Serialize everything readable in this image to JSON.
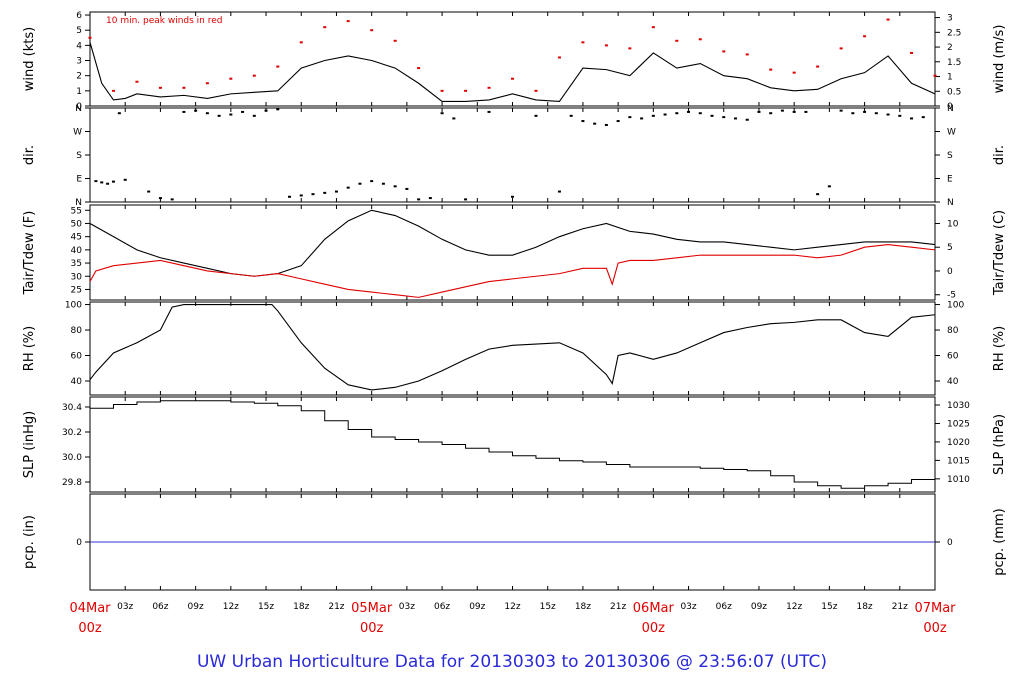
{
  "title": "UW Urban Horticulture Data for 20130303  to  20130306 @ 23:56:07  (UTC)",
  "chart_data": [
    {
      "type": "line",
      "name": "wind",
      "ylabel_left": "wind (kts)",
      "ylabel_right": "wind (m/s)",
      "annotation": "10 min. peak winds in red",
      "ylim": [
        0,
        6.2
      ],
      "ticks_left": [
        "0",
        "1",
        "2",
        "3",
        "4",
        "5",
        "6"
      ],
      "ticks_right": [
        "0",
        "0.5",
        "1",
        "1.5",
        "2",
        "2.5",
        "3"
      ],
      "series": [
        {
          "color": "#000000",
          "x": [
            0,
            1,
            2,
            3,
            4,
            6,
            8,
            10,
            12,
            14,
            16,
            18,
            20,
            22,
            24,
            26,
            28,
            30,
            32,
            34,
            36,
            38,
            40,
            42,
            44,
            46,
            48,
            50,
            52,
            54,
            56,
            58,
            60,
            62,
            64,
            66,
            68,
            70,
            72
          ],
          "values": [
            4.2,
            1.5,
            0.4,
            0.5,
            0.8,
            0.6,
            0.7,
            0.5,
            0.8,
            0.9,
            1.0,
            2.5,
            3.0,
            3.3,
            3.0,
            2.5,
            1.5,
            0.3,
            0.3,
            0.4,
            0.8,
            0.4,
            0.3,
            2.5,
            2.4,
            2.0,
            3.5,
            2.5,
            2.8,
            2.0,
            1.8,
            1.2,
            1.0,
            1.1,
            1.8,
            2.2,
            3.3,
            1.5,
            0.8
          ]
        },
        {
          "color": "#e00000",
          "name": "10 min. peak winds in red",
          "x": [
            0,
            2,
            4,
            6,
            8,
            10,
            12,
            14,
            16,
            18,
            20,
            22,
            24,
            26,
            28,
            30,
            32,
            34,
            36,
            38,
            40,
            42,
            44,
            46,
            48,
            50,
            52,
            54,
            56,
            58,
            60,
            62,
            64,
            66,
            68,
            70,
            72
          ],
          "values": [
            4.5,
            1.0,
            1.6,
            1.2,
            1.2,
            1.5,
            1.8,
            2.0,
            2.6,
            4.2,
            5.2,
            5.6,
            5.0,
            4.3,
            2.5,
            1.0,
            1.0,
            1.2,
            1.8,
            1.0,
            3.2,
            4.2,
            4.0,
            3.8,
            5.2,
            4.3,
            4.4,
            3.6,
            3.4,
            2.4,
            2.2,
            2.6,
            3.8,
            4.6,
            5.7,
            3.5,
            2.0
          ]
        }
      ]
    },
    {
      "type": "scatter",
      "name": "dir",
      "ylabel_left": "dir.",
      "ylabel_right": "dir.",
      "ticks_left": [
        "N",
        "W",
        "S",
        "E",
        "N"
      ],
      "ticks_right": [
        "N",
        "W",
        "S",
        "E",
        "N"
      ],
      "ylim": [
        0,
        360
      ],
      "series": [
        {
          "color": "#000000",
          "x": [
            0.5,
            1,
            1.5,
            2,
            2.5,
            3,
            5,
            6,
            7,
            8,
            9,
            10,
            11,
            12,
            13,
            14,
            15,
            16,
            17,
            18,
            19,
            20,
            21,
            22,
            23,
            24,
            25,
            26,
            27,
            28,
            29,
            30,
            31,
            32,
            34,
            36,
            38,
            40,
            41,
            42,
            43,
            44,
            45,
            46,
            47,
            48,
            49,
            50,
            51,
            52,
            53,
            54,
            55,
            56,
            57,
            58,
            59,
            60,
            61,
            62,
            63,
            64,
            65,
            66,
            67,
            68,
            69,
            70,
            71
          ],
          "values": [
            80,
            75,
            70,
            78,
            340,
            85,
            40,
            15,
            10,
            345,
            350,
            340,
            330,
            335,
            345,
            330,
            350,
            355,
            20,
            25,
            30,
            35,
            40,
            55,
            70,
            80,
            70,
            60,
            50,
            10,
            15,
            340,
            320,
            10,
            345,
            20,
            330,
            40,
            330,
            310,
            300,
            295,
            310,
            325,
            320,
            330,
            335,
            340,
            345,
            340,
            330,
            325,
            320,
            315,
            345,
            340,
            350,
            345,
            345,
            30,
            60,
            350,
            340,
            345,
            340,
            335,
            330,
            320,
            325
          ]
        }
      ]
    },
    {
      "type": "line",
      "name": "temperature",
      "ylabel_left": "Tair/Tdew (F)",
      "ylabel_right": "Tair/Tdew (C)",
      "ylim": [
        21,
        57
      ],
      "ticks_left": [
        "25",
        "30",
        "35",
        "40",
        "45",
        "50",
        "55"
      ],
      "ticks_right": [
        "-5",
        "0",
        "5",
        "10"
      ],
      "series": [
        {
          "color": "#000000",
          "name": "Tair",
          "x": [
            0,
            2,
            4,
            6,
            8,
            10,
            12,
            14,
            16,
            18,
            20,
            22,
            24,
            26,
            28,
            30,
            32,
            34,
            36,
            38,
            40,
            42,
            44,
            46,
            48,
            50,
            52,
            54,
            56,
            58,
            60,
            62,
            64,
            66,
            68,
            70,
            72
          ],
          "values": [
            50,
            45,
            40,
            37,
            35,
            33,
            31,
            30,
            31,
            34,
            44,
            51,
            55,
            53,
            49,
            44,
            40,
            38,
            38,
            41,
            45,
            48,
            50,
            47,
            46,
            44,
            43,
            43,
            42,
            41,
            40,
            41,
            42,
            43,
            43,
            43,
            42
          ]
        },
        {
          "color": "#e00000",
          "name": "Tdew",
          "x": [
            0,
            0.5,
            2,
            4,
            6,
            8,
            10,
            12,
            14,
            16,
            18,
            20,
            22,
            24,
            26,
            28,
            30,
            32,
            34,
            36,
            38,
            40,
            42,
            44,
            44.5,
            45,
            46,
            48,
            50,
            52,
            54,
            56,
            58,
            60,
            62,
            64,
            66,
            68,
            70,
            72
          ],
          "values": [
            28,
            32,
            34,
            35,
            36,
            34,
            32,
            31,
            30,
            31,
            29,
            27,
            25,
            24,
            23,
            22,
            24,
            26,
            28,
            29,
            30,
            31,
            33,
            33,
            27,
            35,
            36,
            36,
            37,
            38,
            38,
            38,
            38,
            38,
            37,
            38,
            41,
            42,
            41,
            40
          ]
        }
      ]
    },
    {
      "type": "line",
      "name": "rh",
      "ylabel_left": "RH (%)",
      "ylabel_right": "RH (%)",
      "ylim": [
        29,
        102
      ],
      "ticks_left": [
        "40",
        "60",
        "80",
        "100"
      ],
      "ticks_right": [
        "40",
        "60",
        "80",
        "100"
      ],
      "series": [
        {
          "color": "#000000",
          "x": [
            0,
            0.5,
            2,
            4,
            6,
            7,
            8,
            10,
            12,
            14,
            15.5,
            16,
            18,
            20,
            22,
            24,
            26,
            28,
            30,
            32,
            34,
            36,
            38,
            40,
            42,
            44,
            44.5,
            45,
            46,
            48,
            50,
            52,
            54,
            56,
            58,
            60,
            62,
            64,
            66,
            68,
            70,
            72
          ],
          "values": [
            41,
            47,
            62,
            70,
            80,
            98,
            100,
            100,
            100,
            100,
            100,
            95,
            70,
            50,
            37,
            33,
            35,
            40,
            48,
            57,
            65,
            68,
            69,
            70,
            62,
            45,
            38,
            60,
            62,
            57,
            62,
            70,
            78,
            82,
            85,
            86,
            88,
            88,
            78,
            75,
            90,
            92
          ]
        }
      ]
    },
    {
      "type": "line",
      "name": "slp",
      "ylabel_left": "SLP (inHg)",
      "ylabel_right": "SLP (hPa)",
      "ylim": [
        29.72,
        30.48
      ],
      "ticks_left": [
        "29.8",
        "30.0",
        "30.2",
        "30.4"
      ],
      "ticks_right": [
        "1010",
        "1015",
        "1020",
        "1025",
        "1030"
      ],
      "series": [
        {
          "color": "#000000",
          "x": [
            0,
            2,
            4,
            6,
            8,
            10,
            12,
            14,
            16,
            18,
            20,
            22,
            24,
            26,
            28,
            30,
            32,
            34,
            36,
            38,
            40,
            42,
            44,
            46,
            48,
            50,
            52,
            54,
            56,
            58,
            60,
            62,
            64,
            66,
            68,
            70,
            72
          ],
          "values": [
            30.39,
            30.42,
            30.44,
            30.45,
            30.45,
            30.45,
            30.44,
            30.43,
            30.41,
            30.37,
            30.29,
            30.22,
            30.16,
            30.14,
            30.12,
            30.1,
            30.07,
            30.04,
            30.01,
            29.99,
            29.97,
            29.96,
            29.94,
            29.92,
            29.92,
            29.92,
            29.91,
            29.9,
            29.89,
            29.85,
            29.8,
            29.77,
            29.75,
            29.77,
            29.79,
            29.82,
            29.85
          ]
        }
      ]
    },
    {
      "type": "line",
      "name": "pcp",
      "ylabel_left": "pcp. (in)",
      "ylabel_right": "pcp. (mm)",
      "ylim": [
        -1,
        1
      ],
      "ticks_left": [
        "0"
      ],
      "ticks_right": [
        "0"
      ],
      "series": [
        {
          "color": "#3030d0",
          "x": [
            0,
            72
          ],
          "values": [
            0,
            0
          ]
        }
      ]
    }
  ],
  "x_axis": {
    "range_hours": [
      0,
      72
    ],
    "day_labels": [
      {
        "hour": 0,
        "line1": "04Mar",
        "line2": "00z"
      },
      {
        "hour": 24,
        "line1": "05Mar",
        "line2": "00z"
      },
      {
        "hour": 48,
        "line1": "06Mar",
        "line2": "00z"
      },
      {
        "hour": 72,
        "line1": "07Mar",
        "line2": "00z"
      }
    ],
    "hour_labels": [
      {
        "hour": 3,
        "label": "03z"
      },
      {
        "hour": 6,
        "label": "06z"
      },
      {
        "hour": 9,
        "label": "09z"
      },
      {
        "hour": 12,
        "label": "12z"
      },
      {
        "hour": 15,
        "label": "15z"
      },
      {
        "hour": 18,
        "label": "18z"
      },
      {
        "hour": 21,
        "label": "21z"
      },
      {
        "hour": 27,
        "label": "03z"
      },
      {
        "hour": 30,
        "label": "06z"
      },
      {
        "hour": 33,
        "label": "09z"
      },
      {
        "hour": 36,
        "label": "12z"
      },
      {
        "hour": 39,
        "label": "15z"
      },
      {
        "hour": 42,
        "label": "18z"
      },
      {
        "hour": 45,
        "label": "21z"
      },
      {
        "hour": 51,
        "label": "03z"
      },
      {
        "hour": 54,
        "label": "06z"
      },
      {
        "hour": 57,
        "label": "09z"
      },
      {
        "hour": 60,
        "label": "12z"
      },
      {
        "hour": 63,
        "label": "15z"
      },
      {
        "hour": 66,
        "label": "18z"
      },
      {
        "hour": 69,
        "label": "21z"
      }
    ]
  }
}
